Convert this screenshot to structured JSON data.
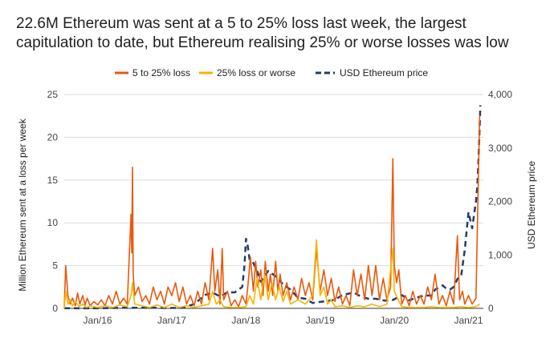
{
  "chart_data": {
    "type": "line",
    "title_lines": [
      "22.6M Ethereum was sent at a 5 to 25% loss last week, the largest",
      "capitulation to date, but Ethereum realising 25% or worse losses was low"
    ],
    "ylabel": "Million Ethereum sent at a loss per week",
    "y2label": "USD Ethereum price",
    "ylim": [
      0,
      25
    ],
    "y2lim": [
      0,
      4000
    ],
    "yticks": [
      "0",
      "5",
      "10",
      "15",
      "20",
      "25"
    ],
    "y2ticks": [
      "0",
      "1,000",
      "2,000",
      "3,000",
      "4,000"
    ],
    "xrange": [
      2015.55,
      2021.2
    ],
    "xticks": [
      {
        "label": "Jan/16",
        "x": 2016.0
      },
      {
        "label": "Jan/17",
        "x": 2017.0
      },
      {
        "label": "Jan/18",
        "x": 2018.0
      },
      {
        "label": "Jan/19",
        "x": 2019.0
      },
      {
        "label": "Jan/20",
        "x": 2020.0
      },
      {
        "label": "Jan/21",
        "x": 2021.0
      }
    ],
    "grid": true,
    "legend": "top",
    "series": [
      {
        "name": "5 to 25% loss",
        "color": "#e8590c",
        "axis": "left",
        "points": [
          [
            2015.55,
            0
          ],
          [
            2015.57,
            5
          ],
          [
            2015.6,
            1.5
          ],
          [
            2015.63,
            0.5
          ],
          [
            2015.66,
            1.2
          ],
          [
            2015.7,
            0.3
          ],
          [
            2015.73,
            1.8
          ],
          [
            2015.76,
            0.5
          ],
          [
            2015.8,
            1.5
          ],
          [
            2015.83,
            0.4
          ],
          [
            2015.86,
            1.2
          ],
          [
            2015.9,
            0.3
          ],
          [
            2015.95,
            0.8
          ],
          [
            2016.0,
            0.4
          ],
          [
            2016.05,
            1.0
          ],
          [
            2016.1,
            0.3
          ],
          [
            2016.15,
            1.5
          ],
          [
            2016.2,
            0.5
          ],
          [
            2016.25,
            2.0
          ],
          [
            2016.3,
            0.5
          ],
          [
            2016.35,
            1.2
          ],
          [
            2016.4,
            0.5
          ],
          [
            2016.45,
            11
          ],
          [
            2016.46,
            6.5
          ],
          [
            2016.47,
            16.5
          ],
          [
            2016.48,
            4
          ],
          [
            2016.5,
            1.5
          ],
          [
            2016.55,
            2.5
          ],
          [
            2016.6,
            0.8
          ],
          [
            2016.65,
            1.5
          ],
          [
            2016.7,
            0.5
          ],
          [
            2016.75,
            2.5
          ],
          [
            2016.8,
            1.0
          ],
          [
            2016.85,
            2.0
          ],
          [
            2016.9,
            0.5
          ],
          [
            2016.95,
            2.5
          ],
          [
            2017.0,
            1.5
          ],
          [
            2017.05,
            3.0
          ],
          [
            2017.1,
            0.8
          ],
          [
            2017.15,
            2.5
          ],
          [
            2017.2,
            0.5
          ],
          [
            2017.25,
            1.5
          ],
          [
            2017.3,
            0.3
          ],
          [
            2017.35,
            2.0
          ],
          [
            2017.4,
            0.5
          ],
          [
            2017.45,
            3.0
          ],
          [
            2017.5,
            1.0
          ],
          [
            2017.55,
            7.0
          ],
          [
            2017.58,
            2.0
          ],
          [
            2017.62,
            4.5
          ],
          [
            2017.65,
            0.5
          ],
          [
            2017.68,
            7.0
          ],
          [
            2017.7,
            1.0
          ],
          [
            2017.75,
            2.0
          ],
          [
            2017.8,
            0.3
          ],
          [
            2017.85,
            1.0
          ],
          [
            2017.9,
            0.2
          ],
          [
            2017.95,
            1.5
          ],
          [
            2018.0,
            0.5
          ],
          [
            2018.03,
            3.0
          ],
          [
            2018.06,
            6.0
          ],
          [
            2018.1,
            2.0
          ],
          [
            2018.13,
            5.5
          ],
          [
            2018.16,
            2.5
          ],
          [
            2018.2,
            4.5
          ],
          [
            2018.23,
            1.5
          ],
          [
            2018.26,
            5.5
          ],
          [
            2018.3,
            2.0
          ],
          [
            2018.33,
            4.0
          ],
          [
            2018.36,
            1.5
          ],
          [
            2018.4,
            5.5
          ],
          [
            2018.43,
            2.0
          ],
          [
            2018.46,
            4.0
          ],
          [
            2018.5,
            1.5
          ],
          [
            2018.55,
            3.0
          ],
          [
            2018.6,
            1.0
          ],
          [
            2018.65,
            2.5
          ],
          [
            2018.7,
            1.0
          ],
          [
            2018.75,
            3.5
          ],
          [
            2018.8,
            1.5
          ],
          [
            2018.85,
            3.0
          ],
          [
            2018.9,
            1.0
          ],
          [
            2018.95,
            7.0
          ],
          [
            2019.0,
            2.0
          ],
          [
            2019.05,
            4.5
          ],
          [
            2019.1,
            1.5
          ],
          [
            2019.15,
            3.5
          ],
          [
            2019.2,
            0.8
          ],
          [
            2019.25,
            2.5
          ],
          [
            2019.3,
            0.5
          ],
          [
            2019.35,
            1.5
          ],
          [
            2019.4,
            0.3
          ],
          [
            2019.45,
            4.5
          ],
          [
            2019.5,
            1.5
          ],
          [
            2019.55,
            4.0
          ],
          [
            2019.6,
            1.0
          ],
          [
            2019.65,
            5.0
          ],
          [
            2019.7,
            1.5
          ],
          [
            2019.75,
            5.0
          ],
          [
            2019.8,
            1.0
          ],
          [
            2019.85,
            3.5
          ],
          [
            2019.9,
            1.0
          ],
          [
            2019.95,
            2.5
          ],
          [
            2019.98,
            17.5
          ],
          [
            2020.0,
            5.0
          ],
          [
            2020.03,
            3.0
          ],
          [
            2020.06,
            4.5
          ],
          [
            2020.1,
            0.5
          ],
          [
            2020.15,
            1.5
          ],
          [
            2020.2,
            0.3
          ],
          [
            2020.25,
            2.0
          ],
          [
            2020.3,
            0.5
          ],
          [
            2020.35,
            1.5
          ],
          [
            2020.4,
            0.5
          ],
          [
            2020.45,
            2.5
          ],
          [
            2020.5,
            1.0
          ],
          [
            2020.55,
            4.0
          ],
          [
            2020.6,
            0.5
          ],
          [
            2020.65,
            1.5
          ],
          [
            2020.7,
            0.3
          ],
          [
            2020.75,
            2.0
          ],
          [
            2020.8,
            0.5
          ],
          [
            2020.85,
            8.5
          ],
          [
            2020.88,
            1.0
          ],
          [
            2020.92,
            2.0
          ],
          [
            2020.95,
            0.5
          ],
          [
            2021.0,
            1.5
          ],
          [
            2021.05,
            0.5
          ],
          [
            2021.1,
            1.2
          ],
          [
            2021.15,
            22.6
          ]
        ]
      },
      {
        "name": "25% loss or worse",
        "color": "#f4b400",
        "axis": "left",
        "points": [
          [
            2015.55,
            0
          ],
          [
            2015.57,
            2.0
          ],
          [
            2015.6,
            0.5
          ],
          [
            2015.63,
            1.0
          ],
          [
            2015.66,
            0.3
          ],
          [
            2015.7,
            0.8
          ],
          [
            2015.75,
            0.2
          ],
          [
            2015.8,
            0.5
          ],
          [
            2015.85,
            0.1
          ],
          [
            2015.9,
            0.3
          ],
          [
            2016.0,
            0.1
          ],
          [
            2016.1,
            0.3
          ],
          [
            2016.2,
            0.1
          ],
          [
            2016.3,
            0.4
          ],
          [
            2016.4,
            0.2
          ],
          [
            2016.45,
            1.5
          ],
          [
            2016.47,
            3.0
          ],
          [
            2016.5,
            0.5
          ],
          [
            2016.6,
            0.3
          ],
          [
            2016.7,
            0.1
          ],
          [
            2016.8,
            0.4
          ],
          [
            2016.9,
            0.1
          ],
          [
            2017.0,
            0.5
          ],
          [
            2017.1,
            0.1
          ],
          [
            2017.2,
            0.3
          ],
          [
            2017.3,
            0.1
          ],
          [
            2017.4,
            0.3
          ],
          [
            2017.5,
            0.5
          ],
          [
            2017.55,
            2.0
          ],
          [
            2017.6,
            0.5
          ],
          [
            2017.65,
            1.0
          ],
          [
            2017.7,
            0.2
          ],
          [
            2017.8,
            0.1
          ],
          [
            2017.9,
            0.1
          ],
          [
            2018.0,
            0.2
          ],
          [
            2018.05,
            1.5
          ],
          [
            2018.1,
            0.5
          ],
          [
            2018.15,
            3.5
          ],
          [
            2018.2,
            1.0
          ],
          [
            2018.25,
            4.0
          ],
          [
            2018.3,
            1.0
          ],
          [
            2018.35,
            3.0
          ],
          [
            2018.4,
            1.0
          ],
          [
            2018.45,
            2.5
          ],
          [
            2018.5,
            0.8
          ],
          [
            2018.55,
            2.0
          ],
          [
            2018.6,
            0.5
          ],
          [
            2018.7,
            1.0
          ],
          [
            2018.8,
            0.5
          ],
          [
            2018.9,
            1.5
          ],
          [
            2018.95,
            8.0
          ],
          [
            2018.98,
            4.0
          ],
          [
            2019.0,
            1.5
          ],
          [
            2019.05,
            2.5
          ],
          [
            2019.1,
            0.5
          ],
          [
            2019.15,
            1.0
          ],
          [
            2019.2,
            0.2
          ],
          [
            2019.3,
            0.3
          ],
          [
            2019.4,
            0.1
          ],
          [
            2019.5,
            0.3
          ],
          [
            2019.6,
            0.2
          ],
          [
            2019.7,
            0.5
          ],
          [
            2019.8,
            0.2
          ],
          [
            2019.9,
            0.5
          ],
          [
            2019.98,
            7.0
          ],
          [
            2020.0,
            2.0
          ],
          [
            2020.05,
            1.0
          ],
          [
            2020.1,
            0.2
          ],
          [
            2020.2,
            0.1
          ],
          [
            2020.3,
            0.1
          ],
          [
            2020.4,
            0.1
          ],
          [
            2020.5,
            0.2
          ],
          [
            2020.6,
            0.1
          ],
          [
            2020.7,
            0.1
          ],
          [
            2020.8,
            0.1
          ],
          [
            2020.9,
            0.2
          ],
          [
            2021.0,
            0.1
          ],
          [
            2021.1,
            0.2
          ],
          [
            2021.15,
            0.5
          ]
        ]
      },
      {
        "name": "USD Ethereum price",
        "color": "#1f3c6e",
        "axis": "right",
        "dashed": true,
        "points": [
          [
            2015.55,
            3
          ],
          [
            2015.8,
            1
          ],
          [
            2016.0,
            1
          ],
          [
            2016.2,
            8
          ],
          [
            2016.4,
            12
          ],
          [
            2016.6,
            12
          ],
          [
            2016.8,
            11
          ],
          [
            2016.9,
            8
          ],
          [
            2017.0,
            8
          ],
          [
            2017.15,
            14
          ],
          [
            2017.3,
            80
          ],
          [
            2017.45,
            250
          ],
          [
            2017.55,
            300
          ],
          [
            2017.65,
            220
          ],
          [
            2017.75,
            300
          ],
          [
            2017.85,
            300
          ],
          [
            2017.95,
            400
          ],
          [
            2017.98,
            800
          ],
          [
            2018.0,
            1300
          ],
          [
            2018.02,
            1200
          ],
          [
            2018.05,
            900
          ],
          [
            2018.1,
            850
          ],
          [
            2018.15,
            700
          ],
          [
            2018.2,
            500
          ],
          [
            2018.3,
            700
          ],
          [
            2018.4,
            600
          ],
          [
            2018.5,
            450
          ],
          [
            2018.6,
            350
          ],
          [
            2018.7,
            200
          ],
          [
            2018.8,
            180
          ],
          [
            2018.9,
            100
          ],
          [
            2018.95,
            120
          ],
          [
            2019.0,
            120
          ],
          [
            2019.1,
            140
          ],
          [
            2019.2,
            160
          ],
          [
            2019.3,
            250
          ],
          [
            2019.4,
            280
          ],
          [
            2019.45,
            300
          ],
          [
            2019.55,
            220
          ],
          [
            2019.65,
            180
          ],
          [
            2019.75,
            180
          ],
          [
            2019.85,
            150
          ],
          [
            2019.95,
            140
          ],
          [
            2020.0,
            170
          ],
          [
            2020.1,
            250
          ],
          [
            2020.15,
            200
          ],
          [
            2020.2,
            150
          ],
          [
            2020.3,
            200
          ],
          [
            2020.4,
            240
          ],
          [
            2020.5,
            240
          ],
          [
            2020.55,
            350
          ],
          [
            2020.65,
            430
          ],
          [
            2020.7,
            370
          ],
          [
            2020.75,
            350
          ],
          [
            2020.8,
            400
          ],
          [
            2020.85,
            550
          ],
          [
            2020.9,
            600
          ],
          [
            2020.95,
            1100
          ],
          [
            2021.0,
            1800
          ],
          [
            2021.05,
            1500
          ],
          [
            2021.08,
            1800
          ],
          [
            2021.1,
            2000
          ],
          [
            2021.12,
            2300
          ],
          [
            2021.14,
            3000
          ],
          [
            2021.16,
            3800
          ]
        ]
      }
    ]
  }
}
